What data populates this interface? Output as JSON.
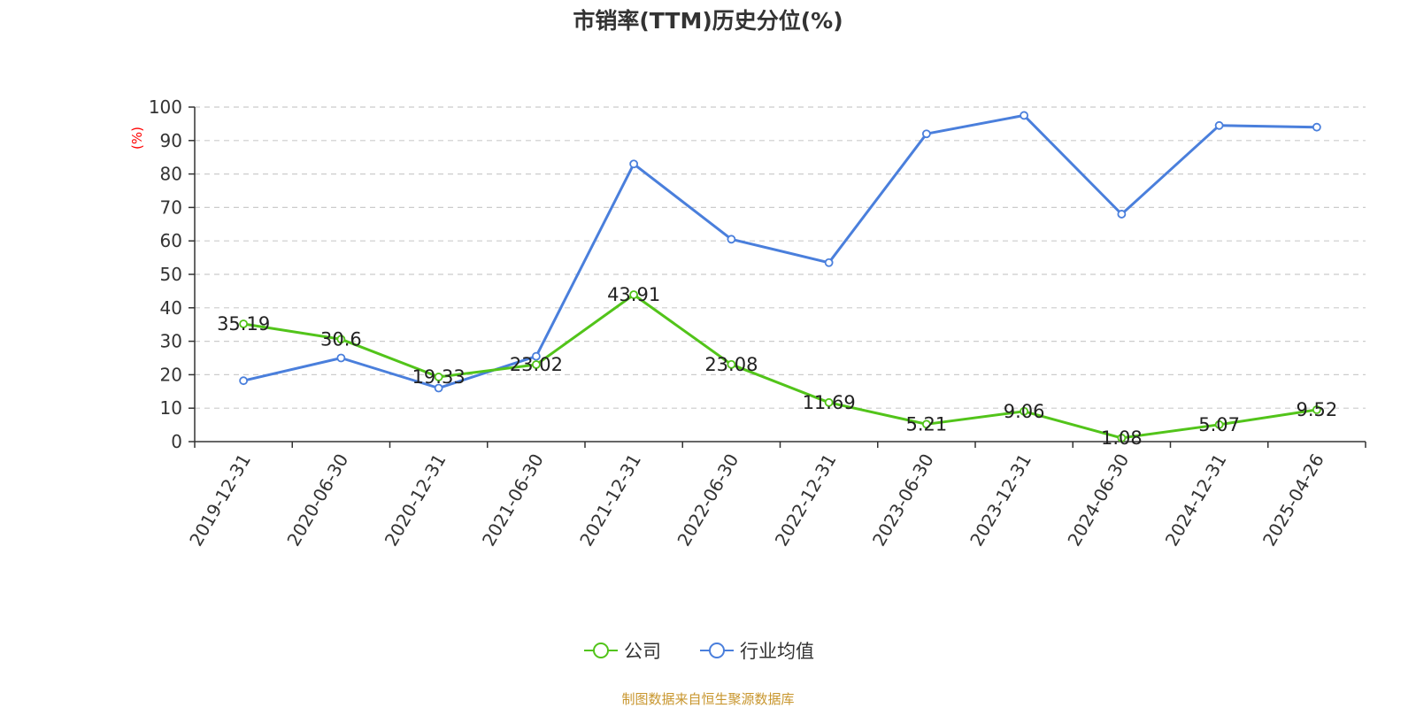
{
  "source": "制图数据来自恒生聚源数据库",
  "colors": {
    "company": "#52c41a",
    "industry": "#4a7fdc",
    "source": "#c8962e",
    "ylabel": "#ff0000"
  },
  "chart_data": {
    "type": "line",
    "title": "市销率(TTM)历史分位(%)",
    "ylabel": "(%)",
    "xlabel": "",
    "ylim": [
      0,
      100
    ],
    "yticks": [
      0,
      10,
      20,
      30,
      40,
      50,
      60,
      70,
      80,
      90,
      100
    ],
    "grid": true,
    "legend_position": "bottom-center",
    "categories": [
      "2019-12-31",
      "2020-06-30",
      "2020-12-31",
      "2021-06-30",
      "2021-12-31",
      "2022-06-30",
      "2022-12-31",
      "2023-06-30",
      "2023-12-31",
      "2024-06-30",
      "2024-12-31",
      "2025-04-26"
    ],
    "series": [
      {
        "name": "公司",
        "color": "#52c41a",
        "show_labels": true,
        "values": [
          35.19,
          30.6,
          19.33,
          23.02,
          43.91,
          23.08,
          11.69,
          5.21,
          9.06,
          1.08,
          5.07,
          9.52
        ]
      },
      {
        "name": "行业均值",
        "color": "#4a7fdc",
        "show_labels": false,
        "values": [
          18.2,
          25.0,
          16.0,
          25.5,
          83.0,
          60.5,
          53.5,
          92.0,
          97.5,
          68.0,
          94.5,
          94.0
        ]
      }
    ]
  }
}
